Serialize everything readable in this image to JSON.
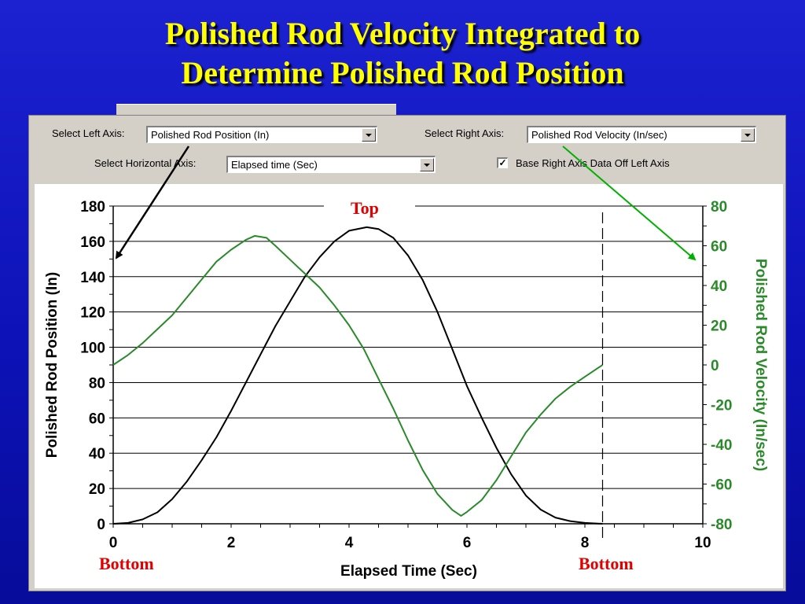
{
  "slide": {
    "title_line1": "Polished Rod Velocity Integrated to",
    "title_line2": "Determine Polished Rod Position"
  },
  "controls": {
    "left_axis_label": "Select Left Axis:",
    "left_axis_value": "Polished Rod Position (In)",
    "right_axis_label": "Select Right Axis:",
    "right_axis_value": "Polished Rod Velocity (In/sec)",
    "horizontal_axis_label": "Select Horizontal Axis:",
    "horizontal_axis_value": "Elapsed time (Sec)",
    "base_right_axis_label": "Base Right Axis Data Off Left Axis",
    "base_right_axis_checked": true
  },
  "colors": {
    "position_line": "#000000",
    "velocity_line": "#2a8a2a",
    "annotation_red": "#e00000",
    "arrow_black": "#000000",
    "arrow_green": "#00b000"
  },
  "annotations": {
    "top": "Top",
    "bottom_left": "Bottom",
    "bottom_right": "Bottom"
  },
  "chart_data": {
    "type": "line",
    "xlabel": "Elapsed Time (Sec)",
    "ylabel": "Polished Rod Position (In)",
    "y2label": "Polished Rod Velocity (In/sec)",
    "xlim": [
      0,
      10
    ],
    "ylim": [
      0,
      180
    ],
    "y2lim": [
      -80,
      80
    ],
    "xticks": [
      0,
      2,
      4,
      6,
      8,
      10
    ],
    "yticks": [
      0,
      20,
      40,
      60,
      80,
      100,
      120,
      140,
      160,
      180
    ],
    "y2ticks": [
      -80,
      -60,
      -40,
      -20,
      0,
      20,
      40,
      60,
      80
    ],
    "grid": true,
    "stroke_end_x": 8.3,
    "series": [
      {
        "name": "Polished Rod Position (In)",
        "axis": "left",
        "x": [
          0,
          0.25,
          0.5,
          0.75,
          1.0,
          1.25,
          1.5,
          1.75,
          2.0,
          2.25,
          2.5,
          2.75,
          3.0,
          3.25,
          3.5,
          3.75,
          4.0,
          4.3,
          4.5,
          4.75,
          5.0,
          5.25,
          5.5,
          5.75,
          6.0,
          6.25,
          6.5,
          6.75,
          7.0,
          7.25,
          7.5,
          7.75,
          8.0,
          8.3
        ],
        "values": [
          0,
          0.5,
          2.5,
          6.5,
          14,
          24,
          36,
          49,
          64,
          80,
          96,
          112,
          126,
          140,
          151,
          160,
          166,
          168,
          167,
          162,
          152,
          138,
          120,
          99,
          78,
          60,
          43,
          28,
          16,
          8,
          3.5,
          1.5,
          0.5,
          0
        ]
      },
      {
        "name": "Polished Rod Velocity (In/sec)",
        "axis": "right",
        "x": [
          0,
          0.25,
          0.5,
          0.75,
          1.0,
          1.25,
          1.5,
          1.75,
          2.0,
          2.25,
          2.4,
          2.6,
          2.75,
          3.0,
          3.25,
          3.5,
          3.75,
          4.0,
          4.25,
          4.5,
          4.75,
          5.0,
          5.25,
          5.5,
          5.75,
          5.9,
          6.0,
          6.25,
          6.5,
          6.75,
          7.0,
          7.25,
          7.5,
          7.75,
          8.0,
          8.3
        ],
        "values": [
          0,
          5,
          11,
          18,
          25,
          34,
          43,
          52,
          58,
          63,
          65,
          64,
          60,
          53,
          46,
          39,
          30,
          20,
          8,
          -7,
          -22,
          -38,
          -53,
          -65,
          -73,
          -76,
          -74,
          -68,
          -58,
          -46,
          -34,
          -25,
          -17,
          -11,
          -6,
          0
        ]
      }
    ]
  }
}
